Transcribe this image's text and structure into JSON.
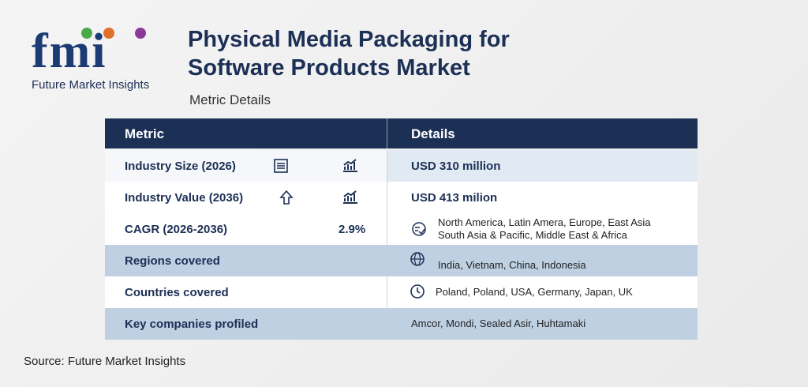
{
  "logo": {
    "mark": "fmi",
    "name": "Future Market Insights"
  },
  "header": {
    "title_line1": "Physical Media Packaging for",
    "title_line2": "Software Products Market",
    "subtitle": "Metric Details"
  },
  "table": {
    "columns": [
      "Metric",
      "Details"
    ],
    "rows": [
      {
        "metric": "Industry Size (2026)",
        "details": [
          "USD 310 million"
        ]
      },
      {
        "metric": "Industry Value (2036)",
        "details": [
          "USD 413 milion"
        ]
      },
      {
        "metric": "CAGR (2026-2036)",
        "value": "2.9%",
        "details": [
          "North America, Latin Amera, Europe, East Asia",
          "South Asia & Pacific, Middle East & Africa"
        ]
      },
      {
        "metric": "Regions covered",
        "details": [
          "India, Vietnam, China, Indonesia"
        ]
      },
      {
        "metric": "Countries covered",
        "details": [
          "Poland, Poland, USA, Germany, Japan, UK"
        ]
      },
      {
        "metric": "Key companies profiled",
        "details": [
          "Amcor, Mondi, Sealed Asir, Huhtamaki"
        ]
      }
    ]
  },
  "footer": {
    "source": "Source: Future Market Insights"
  }
}
